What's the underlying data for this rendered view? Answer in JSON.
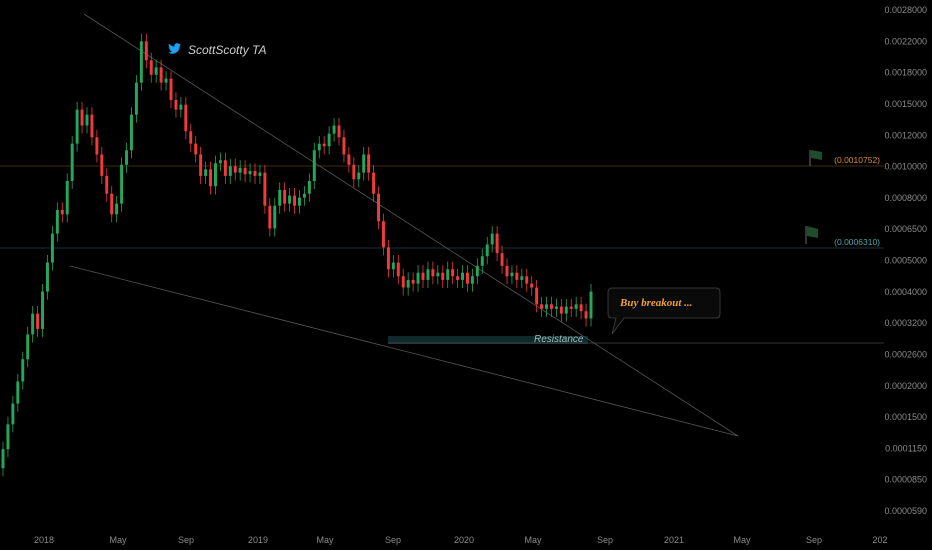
{
  "watermark": {
    "text": "ScottScotty TA",
    "icon": "twitter-bird-icon",
    "icon_color": "#1da1f2"
  },
  "levels": [
    {
      "value": 0.0010752,
      "label": "(0.0010752)",
      "color": "#d98b2b"
    },
    {
      "value": 0.000631,
      "label": "(0.0006310)",
      "color": "#4fa3a8"
    }
  ],
  "annotations": {
    "resistance": "Resistance",
    "callout": "Buy breakout ..."
  },
  "colors": {
    "up": "#26a65b",
    "down": "#ef3b3b",
    "background": "#000000"
  },
  "chart_data": {
    "type": "candlestick",
    "scale": "log",
    "ylim": [
      0.00055,
      0.0028
    ],
    "y_ticks": [
      "0.0028000",
      "0.0022000",
      "0.0018000",
      "0.0015000",
      "0.0012000",
      "0.0010000",
      "0.0008000",
      "0.0006500",
      "0.0005000",
      "0.0004000",
      "0.0003200",
      "0.0002600",
      "0.0002000",
      "0.0001500",
      "0.0001150",
      "0.0000850",
      "0.0000590"
    ],
    "x_ticks": [
      "2018",
      "May",
      "Sep",
      "2019",
      "May",
      "Sep",
      "2020",
      "May",
      "Sep",
      "2021",
      "May",
      "Sep",
      "202"
    ],
    "resistance_value": 0.00033,
    "series": [
      {
        "t": 0,
        "o": 8.2e-05,
        "c": 9.5e-05
      },
      {
        "t": 1,
        "o": 9.5e-05,
        "c": 0.000115
      },
      {
        "t": 2,
        "o": 0.000115,
        "c": 0.000135
      },
      {
        "t": 3,
        "o": 0.000135,
        "c": 0.00016
      },
      {
        "t": 4,
        "o": 0.00016,
        "c": 0.00019
      },
      {
        "t": 5,
        "o": 0.00019,
        "c": 0.00023
      },
      {
        "t": 6,
        "o": 0.00023,
        "c": 0.00027
      },
      {
        "t": 7,
        "o": 0.00027,
        "c": 0.00024
      },
      {
        "t": 8,
        "o": 0.00024,
        "c": 0.00032
      },
      {
        "t": 9,
        "o": 0.00032,
        "c": 0.0004
      },
      {
        "t": 10,
        "o": 0.0004,
        "c": 0.0005
      },
      {
        "t": 11,
        "o": 0.0005,
        "c": 0.0006
      },
      {
        "t": 12,
        "o": 0.0006,
        "c": 0.00058
      },
      {
        "t": 13,
        "o": 0.00058,
        "c": 0.00075
      },
      {
        "t": 14,
        "o": 0.00075,
        "c": 0.001
      },
      {
        "t": 15,
        "o": 0.001,
        "c": 0.0013
      },
      {
        "t": 16,
        "o": 0.0013,
        "c": 0.00115
      },
      {
        "t": 17,
        "o": 0.00115,
        "c": 0.00125
      },
      {
        "t": 18,
        "o": 0.00125,
        "c": 0.00105
      },
      {
        "t": 19,
        "o": 0.00105,
        "c": 0.00092
      },
      {
        "t": 20,
        "o": 0.00092,
        "c": 0.00078
      },
      {
        "t": 21,
        "o": 0.00078,
        "c": 0.00068
      },
      {
        "t": 22,
        "o": 0.00068,
        "c": 0.00058
      },
      {
        "t": 23,
        "o": 0.00058,
        "c": 0.00063
      },
      {
        "t": 24,
        "o": 0.00063,
        "c": 0.00085
      },
      {
        "t": 25,
        "o": 0.00085,
        "c": 0.00095
      },
      {
        "t": 26,
        "o": 0.00095,
        "c": 0.00125
      },
      {
        "t": 27,
        "o": 0.00125,
        "c": 0.0016
      },
      {
        "t": 28,
        "o": 0.0016,
        "c": 0.0022
      },
      {
        "t": 29,
        "o": 0.0022,
        "c": 0.0019
      },
      {
        "t": 30,
        "o": 0.0019,
        "c": 0.0017
      },
      {
        "t": 31,
        "o": 0.0017,
        "c": 0.0018
      },
      {
        "t": 32,
        "o": 0.0018,
        "c": 0.0016
      },
      {
        "t": 33,
        "o": 0.0016,
        "c": 0.00165
      },
      {
        "t": 34,
        "o": 0.00165,
        "c": 0.0014
      },
      {
        "t": 35,
        "o": 0.0014,
        "c": 0.0013
      },
      {
        "t": 36,
        "o": 0.0013,
        "c": 0.00135
      },
      {
        "t": 37,
        "o": 0.00135,
        "c": 0.0011
      },
      {
        "t": 38,
        "o": 0.0011,
        "c": 0.001
      },
      {
        "t": 39,
        "o": 0.001,
        "c": 0.00092
      },
      {
        "t": 40,
        "o": 0.00092,
        "c": 0.00078
      },
      {
        "t": 41,
        "o": 0.00078,
        "c": 0.00082
      },
      {
        "t": 42,
        "o": 0.00082,
        "c": 0.00072
      },
      {
        "t": 43,
        "o": 0.00072,
        "c": 0.00086
      },
      {
        "t": 44,
        "o": 0.00086,
        "c": 0.00088
      },
      {
        "t": 45,
        "o": 0.00088,
        "c": 0.00078
      },
      {
        "t": 46,
        "o": 0.00078,
        "c": 0.00084
      },
      {
        "t": 47,
        "o": 0.00084,
        "c": 0.0008
      },
      {
        "t": 48,
        "o": 0.0008,
        "c": 0.00083
      },
      {
        "t": 49,
        "o": 0.00083,
        "c": 0.00079
      },
      {
        "t": 50,
        "o": 0.00079,
        "c": 0.00081
      },
      {
        "t": 51,
        "o": 0.00081,
        "c": 0.00078
      },
      {
        "t": 52,
        "o": 0.00078,
        "c": 0.0008
      },
      {
        "t": 53,
        "o": 0.0008,
        "c": 0.00062
      },
      {
        "t": 54,
        "o": 0.00062,
        "c": 0.00052
      },
      {
        "t": 55,
        "o": 0.00052,
        "c": 0.00062
      },
      {
        "t": 56,
        "o": 0.00062,
        "c": 0.0007
      },
      {
        "t": 57,
        "o": 0.0007,
        "c": 0.00063
      },
      {
        "t": 58,
        "o": 0.00063,
        "c": 0.00067
      },
      {
        "t": 59,
        "o": 0.00067,
        "c": 0.00062
      },
      {
        "t": 60,
        "o": 0.00062,
        "c": 0.00066
      },
      {
        "t": 61,
        "o": 0.00066,
        "c": 0.00068
      },
      {
        "t": 62,
        "o": 0.00068,
        "c": 0.00075
      },
      {
        "t": 63,
        "o": 0.00075,
        "c": 0.00095
      },
      {
        "t": 64,
        "o": 0.00095,
        "c": 0.001
      },
      {
        "t": 65,
        "o": 0.001,
        "c": 0.00098
      },
      {
        "t": 66,
        "o": 0.00098,
        "c": 0.00108
      },
      {
        "t": 67,
        "o": 0.00108,
        "c": 0.00115
      },
      {
        "t": 68,
        "o": 0.00115,
        "c": 0.00105
      },
      {
        "t": 69,
        "o": 0.00105,
        "c": 0.00092
      },
      {
        "t": 70,
        "o": 0.00092,
        "c": 0.00085
      },
      {
        "t": 71,
        "o": 0.00085,
        "c": 0.00076
      },
      {
        "t": 72,
        "o": 0.00076,
        "c": 0.0008
      },
      {
        "t": 73,
        "o": 0.0008,
        "c": 0.00092
      },
      {
        "t": 74,
        "o": 0.00092,
        "c": 0.0008
      },
      {
        "t": 75,
        "o": 0.0008,
        "c": 0.00068
      },
      {
        "t": 76,
        "o": 0.00068,
        "c": 0.00055
      },
      {
        "t": 77,
        "o": 0.00055,
        "c": 0.00045
      },
      {
        "t": 78,
        "o": 0.00045,
        "c": 0.00038
      },
      {
        "t": 79,
        "o": 0.00038,
        "c": 0.0004
      },
      {
        "t": 80,
        "o": 0.0004,
        "c": 0.00036
      },
      {
        "t": 81,
        "o": 0.00036,
        "c": 0.00033
      },
      {
        "t": 82,
        "o": 0.00033,
        "c": 0.00035
      },
      {
        "t": 83,
        "o": 0.00035,
        "c": 0.00034
      },
      {
        "t": 84,
        "o": 0.00034,
        "c": 0.00037
      },
      {
        "t": 85,
        "o": 0.00037,
        "c": 0.00035
      },
      {
        "t": 86,
        "o": 0.00035,
        "c": 0.00038
      },
      {
        "t": 87,
        "o": 0.00038,
        "c": 0.00036
      },
      {
        "t": 88,
        "o": 0.00036,
        "c": 0.00037
      },
      {
        "t": 89,
        "o": 0.00037,
        "c": 0.00035
      },
      {
        "t": 90,
        "o": 0.00035,
        "c": 0.00038
      },
      {
        "t": 91,
        "o": 0.00038,
        "c": 0.00036
      },
      {
        "t": 92,
        "o": 0.00036,
        "c": 0.00035
      },
      {
        "t": 93,
        "o": 0.00035,
        "c": 0.00037
      },
      {
        "t": 94,
        "o": 0.00037,
        "c": 0.00034
      },
      {
        "t": 95,
        "o": 0.00034,
        "c": 0.00036
      },
      {
        "t": 96,
        "o": 0.00036,
        "c": 0.00039
      },
      {
        "t": 97,
        "o": 0.00039,
        "c": 0.00042
      },
      {
        "t": 98,
        "o": 0.00042,
        "c": 0.00046
      },
      {
        "t": 99,
        "o": 0.00046,
        "c": 0.0005
      },
      {
        "t": 100,
        "o": 0.0005,
        "c": 0.00043
      },
      {
        "t": 101,
        "o": 0.00043,
        "c": 0.00039
      },
      {
        "t": 102,
        "o": 0.00039,
        "c": 0.00036
      },
      {
        "t": 103,
        "o": 0.00036,
        "c": 0.00037
      },
      {
        "t": 104,
        "o": 0.00037,
        "c": 0.00035
      },
      {
        "t": 105,
        "o": 0.00035,
        "c": 0.00036
      },
      {
        "t": 106,
        "o": 0.00036,
        "c": 0.00034
      },
      {
        "t": 107,
        "o": 0.00034,
        "c": 0.00033
      },
      {
        "t": 108,
        "o": 0.00033,
        "c": 0.00029
      },
      {
        "t": 109,
        "o": 0.00029,
        "c": 0.00028
      },
      {
        "t": 110,
        "o": 0.00028,
        "c": 0.00029
      },
      {
        "t": 111,
        "o": 0.00029,
        "c": 0.00028
      },
      {
        "t": 112,
        "o": 0.00028,
        "c": 0.000285
      },
      {
        "t": 113,
        "o": 0.000285,
        "c": 0.00027
      },
      {
        "t": 114,
        "o": 0.00027,
        "c": 0.000285
      },
      {
        "t": 115,
        "o": 0.000285,
        "c": 0.00028
      },
      {
        "t": 116,
        "o": 0.00028,
        "c": 0.00029
      },
      {
        "t": 117,
        "o": 0.00029,
        "c": 0.000275
      },
      {
        "t": 118,
        "o": 0.000275,
        "c": 0.00026
      },
      {
        "t": 119,
        "o": 0.00026,
        "c": 0.00032
      }
    ]
  }
}
